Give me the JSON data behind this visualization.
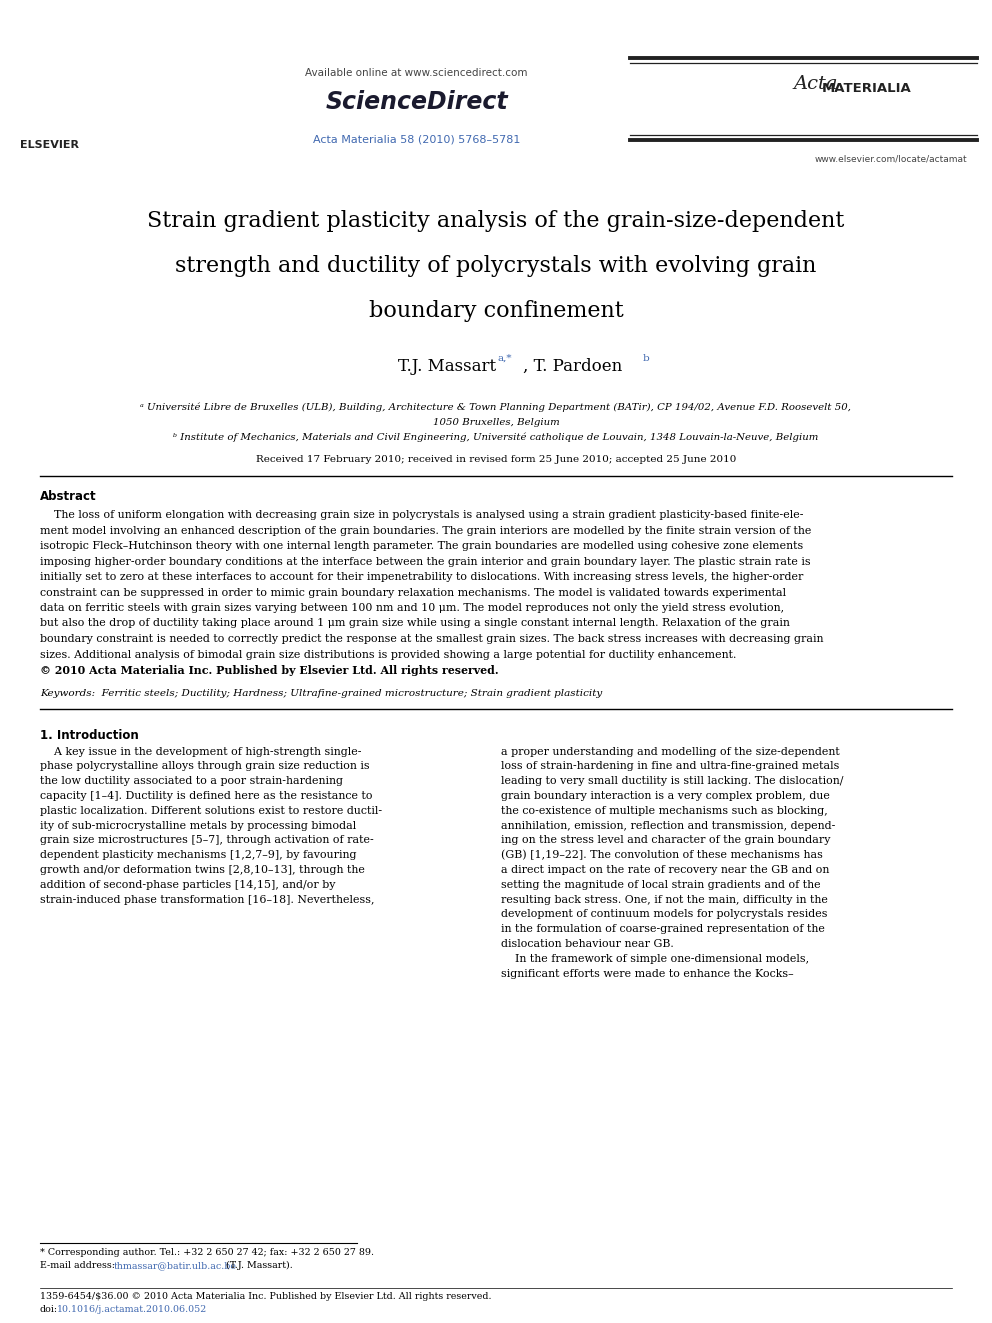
{
  "page_width": 9.92,
  "page_height": 13.23,
  "bg_color": "#ffffff",
  "header_available_text": "Available online at www.sciencedirect.com",
  "journal_ref": "Acta Materialia 58 (2010) 5768–5781",
  "journal_url": "www.elsevier.com/locate/actamat",
  "title_line1": "Strain gradient plasticity analysis of the grain-size-dependent",
  "title_line2": "strength and ductility of polycrystals with evolving grain",
  "title_line3": "boundary confinement",
  "authors_main": "T.J. Massart",
  "authors_sup1": "a,*",
  "authors_sep": ", T. Pardoen",
  "authors_sup2": "b",
  "affil_a": "ᵃ Université Libre de Bruxelles (ULB), Building, Architecture & Town Planning Department (BATir), CP 194/02, Avenue F.D. Roosevelt 50,",
  "affil_a2": "1050 Bruxelles, Belgium",
  "affil_b": "ᵇ Institute of Mechanics, Materials and Civil Engineering, Université catholique de Louvain, 1348 Louvain-la-Neuve, Belgium",
  "received": "Received 17 February 2010; received in revised form 25 June 2010; accepted 25 June 2010",
  "abstract_title": "Abstract",
  "keywords_text": "Keywords:  Ferritic steels; Ductility; Hardness; Ultrafine-grained microstructure; Strain gradient plasticity",
  "section1_title": "1. Introduction",
  "footer_text": "1359-6454/$36.00 © 2010 Acta Materialia Inc. Published by Elsevier Ltd. All rights reserved.",
  "footer_doi_label": "doi:",
  "footer_doi_link": "10.1016/j.actamat.2010.06.052",
  "footnote_star": "* Corresponding author. Tel.: +32 2 650 27 42; fax: +32 2 650 27 89.",
  "footnote_email_label": "E-mail address: ",
  "footnote_email_link": "thmassar@batir.ulb.ac.be",
  "footnote_email_suffix": " (T.J. Massart).",
  "link_color": "#4169b0",
  "text_color": "#000000",
  "separator_color": "#000000",
  "abstract_lines": [
    "    The loss of uniform elongation with decreasing grain size in polycrystals is analysed using a strain gradient plasticity-based finite-ele-",
    "ment model involving an enhanced description of the grain boundaries. The grain interiors are modelled by the finite strain version of the",
    "isotropic Fleck–Hutchinson theory with one internal length parameter. The grain boundaries are modelled using cohesive zone elements",
    "imposing higher-order boundary conditions at the interface between the grain interior and grain boundary layer. The plastic strain rate is",
    "initially set to zero at these interfaces to account for their impenetrability to dislocations. With increasing stress levels, the higher-order",
    "constraint can be suppressed in order to mimic grain boundary relaxation mechanisms. The model is validated towards experimental",
    "data on ferritic steels with grain sizes varying between 100 nm and 10 μm. The model reproduces not only the yield stress evolution,",
    "but also the drop of ductility taking place around 1 μm grain size while using a single constant internal length. Relaxation of the grain",
    "boundary constraint is needed to correctly predict the response at the smallest grain sizes. The back stress increases with decreasing grain",
    "sizes. Additional analysis of bimodal grain size distributions is provided showing a large potential for ductility enhancement.",
    "© 2010 Acta Materialia Inc. Published by Elsevier Ltd. All rights reserved."
  ],
  "col1_lines": [
    "    A key issue in the development of high-strength single-",
    "phase polycrystalline alloys through grain size reduction is",
    "the low ductility associated to a poor strain-hardening",
    "capacity [1–4]. Ductility is defined here as the resistance to",
    "plastic localization. Different solutions exist to restore ductil-",
    "ity of sub-microcrystalline metals by processing bimodal",
    "grain size microstructures [5–7], through activation of rate-",
    "dependent plasticity mechanisms [1,2,7–9], by favouring",
    "growth and/or deformation twins [2,8,10–13], through the",
    "addition of second-phase particles [14,15], and/or by",
    "strain-induced phase transformation [16–18]. Nevertheless,"
  ],
  "col2_lines": [
    "a proper understanding and modelling of the size-dependent",
    "loss of strain-hardening in fine and ultra-fine-grained metals",
    "leading to very small ductility is still lacking. The dislocation/",
    "grain boundary interaction is a very complex problem, due",
    "the co-existence of multiple mechanisms such as blocking,",
    "annihilation, emission, reflection and transmission, depend-",
    "ing on the stress level and character of the grain boundary",
    "(GB) [1,19–22]. The convolution of these mechanisms has",
    "a direct impact on the rate of recovery near the GB and on",
    "setting the magnitude of local strain gradients and of the",
    "resulting back stress. One, if not the main, difficulty in the",
    "development of continuum models for polycrystals resides",
    "in the formulation of coarse-grained representation of the",
    "dislocation behaviour near GB.",
    "    In the framework of simple one-dimensional models,",
    "significant efforts were made to enhance the Kocks–"
  ]
}
